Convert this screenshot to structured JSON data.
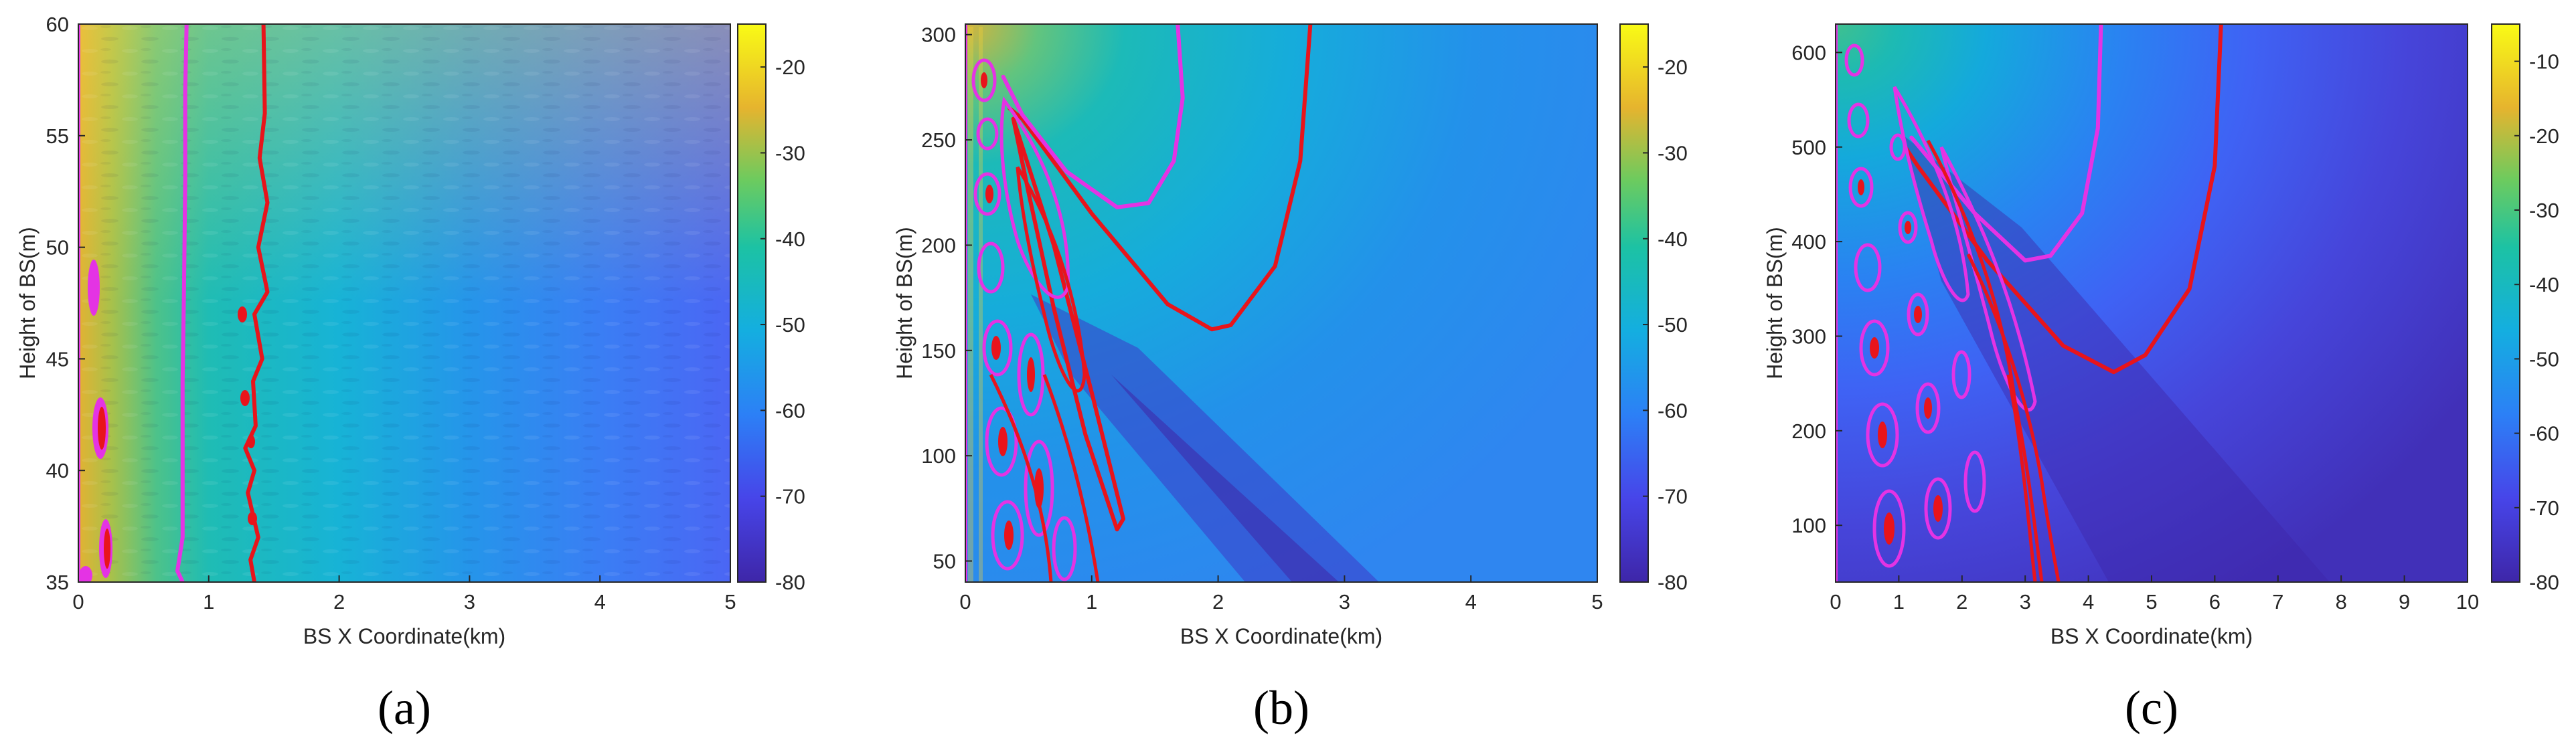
{
  "colors": {
    "contour_red": "#e8141b",
    "contour_magenta": "#e433e4",
    "colormap": "parula"
  },
  "chart_data": [
    {
      "type": "heatmap",
      "caption": "(a)",
      "xlabel": "BS X Coordinate(km)",
      "ylabel": "Height of BS(m)",
      "xlim": [
        0,
        5
      ],
      "ylim": [
        35,
        60
      ],
      "xticks": [
        "0",
        "1",
        "2",
        "3",
        "4",
        "5"
      ],
      "yticks": [
        "35",
        "40",
        "45",
        "50",
        "55",
        "60"
      ],
      "colorbar": {
        "range": [
          -80,
          -15
        ],
        "ticks": [
          "-20",
          "-30",
          "-40",
          "-50",
          "-60",
          "-70",
          "-80"
        ]
      },
      "contours": [
        {
          "color": "magenta",
          "x": [
            0.0,
            0.0
          ],
          "y": [
            35,
            60
          ]
        },
        {
          "color": "magenta",
          "x": [
            0.83,
            0.82,
            0.82,
            0.81,
            0.8,
            0.8,
            0.8,
            0.76,
            0.8
          ],
          "y": [
            60,
            57,
            53,
            48,
            44,
            40,
            37,
            35.5,
            35
          ]
        },
        {
          "color": "red",
          "x": [
            1.42,
            1.43,
            1.39,
            1.45,
            1.38,
            1.45,
            1.35,
            1.41,
            1.34,
            1.36,
            1.28,
            1.35,
            1.3,
            1.38,
            1.32,
            1.35
          ],
          "y": [
            60,
            56,
            54,
            52,
            50,
            48,
            47,
            45,
            44,
            42,
            41,
            40,
            39,
            37,
            36,
            35
          ]
        }
      ]
    },
    {
      "type": "heatmap",
      "caption": "(b)",
      "xlabel": "BS X Coordinate(km)",
      "ylabel": "Height of BS(m)",
      "xlim": [
        0,
        5
      ],
      "ylim": [
        40,
        305
      ],
      "xticks": [
        "0",
        "1",
        "2",
        "3",
        "4",
        "5"
      ],
      "yticks": [
        "50",
        "100",
        "150",
        "200",
        "250",
        "300"
      ],
      "colorbar": {
        "range": [
          -80,
          -15
        ],
        "ticks": [
          "-20",
          "-30",
          "-40",
          "-50",
          "-60",
          "-70",
          "-80"
        ]
      },
      "contours": [
        {
          "color": "red",
          "x": [
            2.73,
            2.65,
            2.45,
            2.1,
            1.95,
            1.6,
            1.0,
            0.45,
            0.35
          ],
          "y": [
            305,
            240,
            190,
            162,
            160,
            172,
            215,
            260,
            265
          ]
        },
        {
          "color": "red",
          "x": [
            0.38,
            0.7,
            1.0,
            1.25,
            1.2,
            0.95,
            0.7,
            0.5,
            0.38
          ],
          "y": [
            260,
            200,
            130,
            70,
            65,
            110,
            170,
            225,
            260
          ]
        },
        {
          "color": "magenta",
          "x": [
            1.68,
            1.72,
            1.65,
            1.45,
            1.2,
            0.8,
            0.45,
            0.3
          ],
          "y": [
            305,
            270,
            240,
            220,
            218,
            235,
            262,
            280
          ]
        },
        {
          "color": "magenta",
          "x": [
            0.0,
            0.0
          ],
          "y": [
            40,
            305
          ]
        }
      ]
    },
    {
      "type": "heatmap",
      "caption": "(c)",
      "xlabel": "BS X Coordinate(km)",
      "ylabel": "Height of BS(m)",
      "xlim": [
        0,
        10
      ],
      "ylim": [
        40,
        630
      ],
      "xticks": [
        "0",
        "1",
        "2",
        "3",
        "4",
        "5",
        "6",
        "7",
        "8",
        "9",
        "10"
      ],
      "yticks": [
        "100",
        "200",
        "300",
        "400",
        "500",
        "600"
      ],
      "colorbar": {
        "range": [
          -80,
          -5
        ],
        "ticks": [
          "-10",
          "-20",
          "-30",
          "-40",
          "-50",
          "-60",
          "-70",
          "-80"
        ]
      },
      "contours": [
        {
          "color": "red",
          "x": [
            6.1,
            6.0,
            5.6,
            4.9,
            4.4,
            3.6,
            2.4,
            1.3,
            1.1
          ],
          "y": [
            630,
            480,
            350,
            280,
            262,
            290,
            380,
            480,
            500
          ]
        },
        {
          "color": "magenta",
          "x": [
            4.2,
            4.15,
            3.9,
            3.4,
            3.0,
            2.2,
            1.2
          ],
          "y": [
            630,
            520,
            430,
            385,
            380,
            430,
            510
          ]
        },
        {
          "color": "magenta",
          "x": [
            0.0,
            0.0
          ],
          "y": [
            40,
            630
          ]
        }
      ]
    }
  ]
}
